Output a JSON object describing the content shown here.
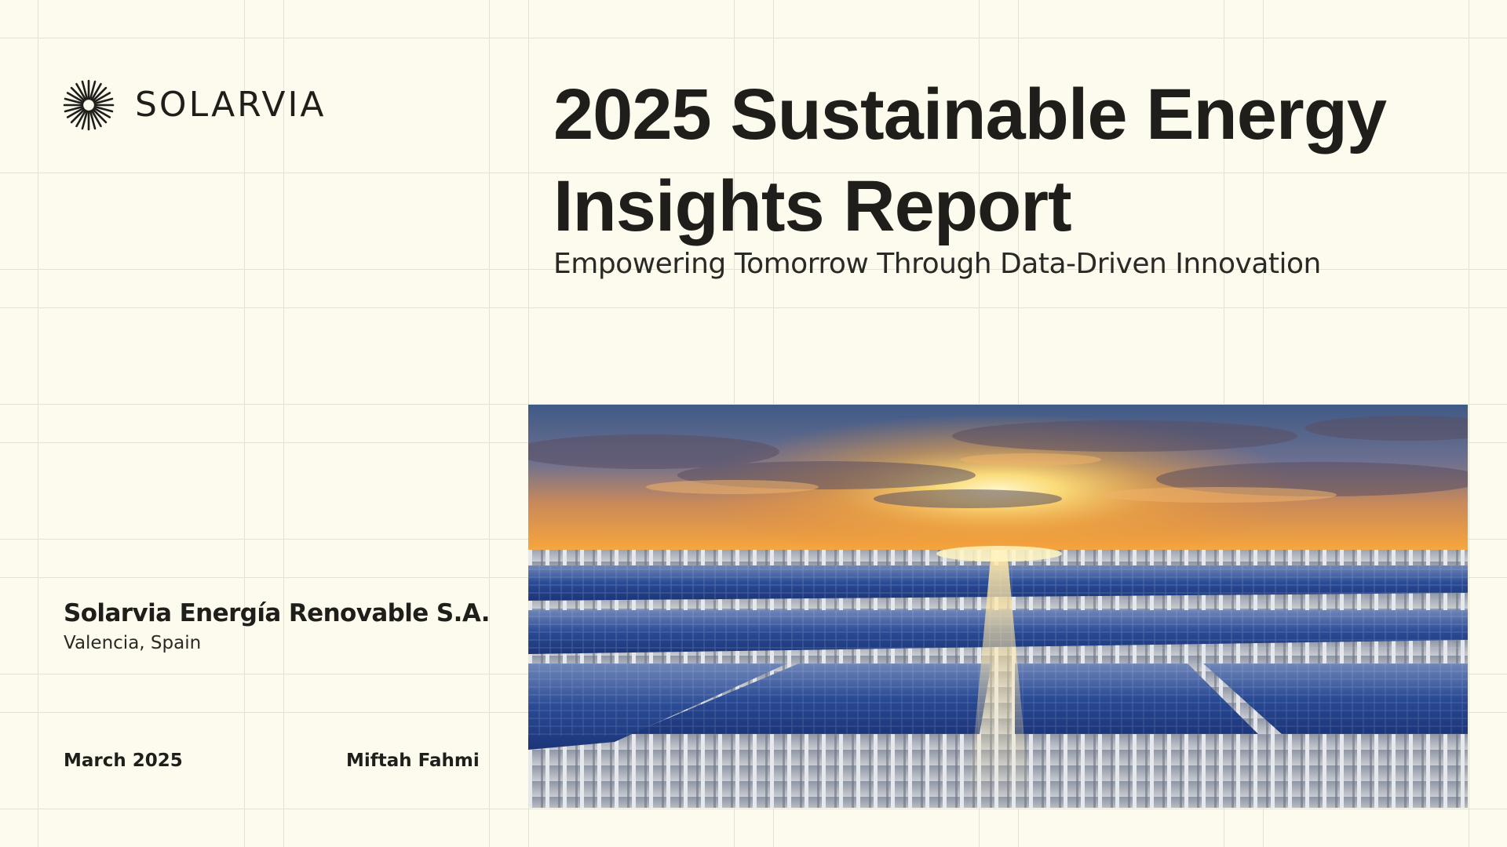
{
  "brand": {
    "name": "SOLARVIA",
    "logo_icon": "sunburst-icon"
  },
  "report": {
    "title_line1": "2025 Sustainable Energy",
    "title_line2": "Insights Report",
    "subtitle": "Empowering Tomorrow Through Data-Driven Innovation"
  },
  "company": {
    "name": "Solarvia Energía Renovable S.A.",
    "location": "Valencia, Spain"
  },
  "meta": {
    "date": "March 2025",
    "author": "Miftah Fahmi"
  },
  "colors": {
    "background": "#fdfaee",
    "grid": "#e6e2d3",
    "text": "#1f1e1a"
  },
  "hero_image": {
    "subject": "solar-panels-at-sunset-photo"
  }
}
